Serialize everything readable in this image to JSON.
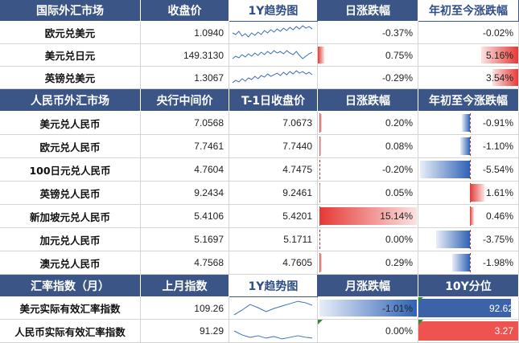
{
  "fx_section": {
    "headers": [
      "国际外汇市场",
      "收盘价",
      "1Y趋势图",
      "日涨跌幅",
      "年初至今涨跌幅"
    ],
    "rows": [
      {
        "name": "欧元兑美元",
        "close": "1.0940",
        "day": "-0.37%",
        "day_value": -0.37,
        "ytd": "-0.02%",
        "ytd_value": -0.02
      },
      {
        "name": "美元兑日元",
        "close": "149.3130",
        "day": "0.75%",
        "day_value": 0.75,
        "ytd": "5.16%",
        "ytd_value": 5.16
      },
      {
        "name": "英镑兑美元",
        "close": "1.3067",
        "day": "-0.29%",
        "day_value": -0.29,
        "ytd": "3.54%",
        "ytd_value": 3.54
      }
    ]
  },
  "rmb_section": {
    "headers": [
      "人民币外汇市场",
      "央行中间价",
      "T-1日收盘价",
      "日涨跌幅",
      "年初至今涨跌幅"
    ],
    "rows": [
      {
        "name": "美元兑人民币",
        "mid": "7.0568",
        "prev": "7.0673",
        "day": "0.20%",
        "day_value": 0.2,
        "ytd": "-0.91%",
        "ytd_value": -0.91
      },
      {
        "name": "欧元兑人民币",
        "mid": "7.7461",
        "prev": "7.7440",
        "day": "0.08%",
        "day_value": 0.08,
        "ytd": "-1.10%",
        "ytd_value": -1.1
      },
      {
        "name": "100日元兑人民币",
        "mid": "4.7604",
        "prev": "4.7475",
        "day": "-0.20%",
        "day_value": -0.2,
        "ytd": "-5.54%",
        "ytd_value": -5.54
      },
      {
        "name": "英镑兑人民币",
        "mid": "9.2434",
        "prev": "9.2461",
        "day": "0.05%",
        "day_value": 0.05,
        "ytd": "1.61%",
        "ytd_value": 1.61
      },
      {
        "name": "新加坡元兑人民币",
        "mid": "5.4106",
        "prev": "5.4201",
        "day": "15.14%",
        "day_value": 15.14,
        "ytd": "0.46%",
        "ytd_value": 0.46
      },
      {
        "name": "加元兑人民币",
        "mid": "5.1697",
        "prev": "5.1711",
        "day": "0.00%",
        "day_value": 0.0,
        "ytd": "-3.75%",
        "ytd_value": -3.75
      },
      {
        "name": "澳元兑人民币",
        "mid": "4.7568",
        "prev": "4.7605",
        "day": "0.29%",
        "day_value": 0.29,
        "ytd": "-1.98%",
        "ytd_value": -1.98
      }
    ]
  },
  "index_section": {
    "headers": [
      "汇率指数（月）",
      "上月指数",
      "1Y趋势图",
      "月涨跌幅",
      "10Y分位"
    ],
    "rows": [
      {
        "name": "美元实际有效汇率指数",
        "last": "109.26",
        "month": "-1.01%",
        "month_value": -1.01,
        "pct": "92.62",
        "pct_value": 92.62,
        "pct_color": "#3c62a8"
      },
      {
        "name": "人民币实际有效汇率指数",
        "last": "91.29",
        "month": "0.00%",
        "month_value": 0.0,
        "pct": "3.27",
        "pct_value": 3.27,
        "pct_color": "#ef5350"
      }
    ]
  },
  "colors": {
    "header_bg": "#3a5586",
    "pos_bar": "#e53935",
    "neg_bar": "#2f62b5",
    "spark_line": "#3a6cc0"
  }
}
